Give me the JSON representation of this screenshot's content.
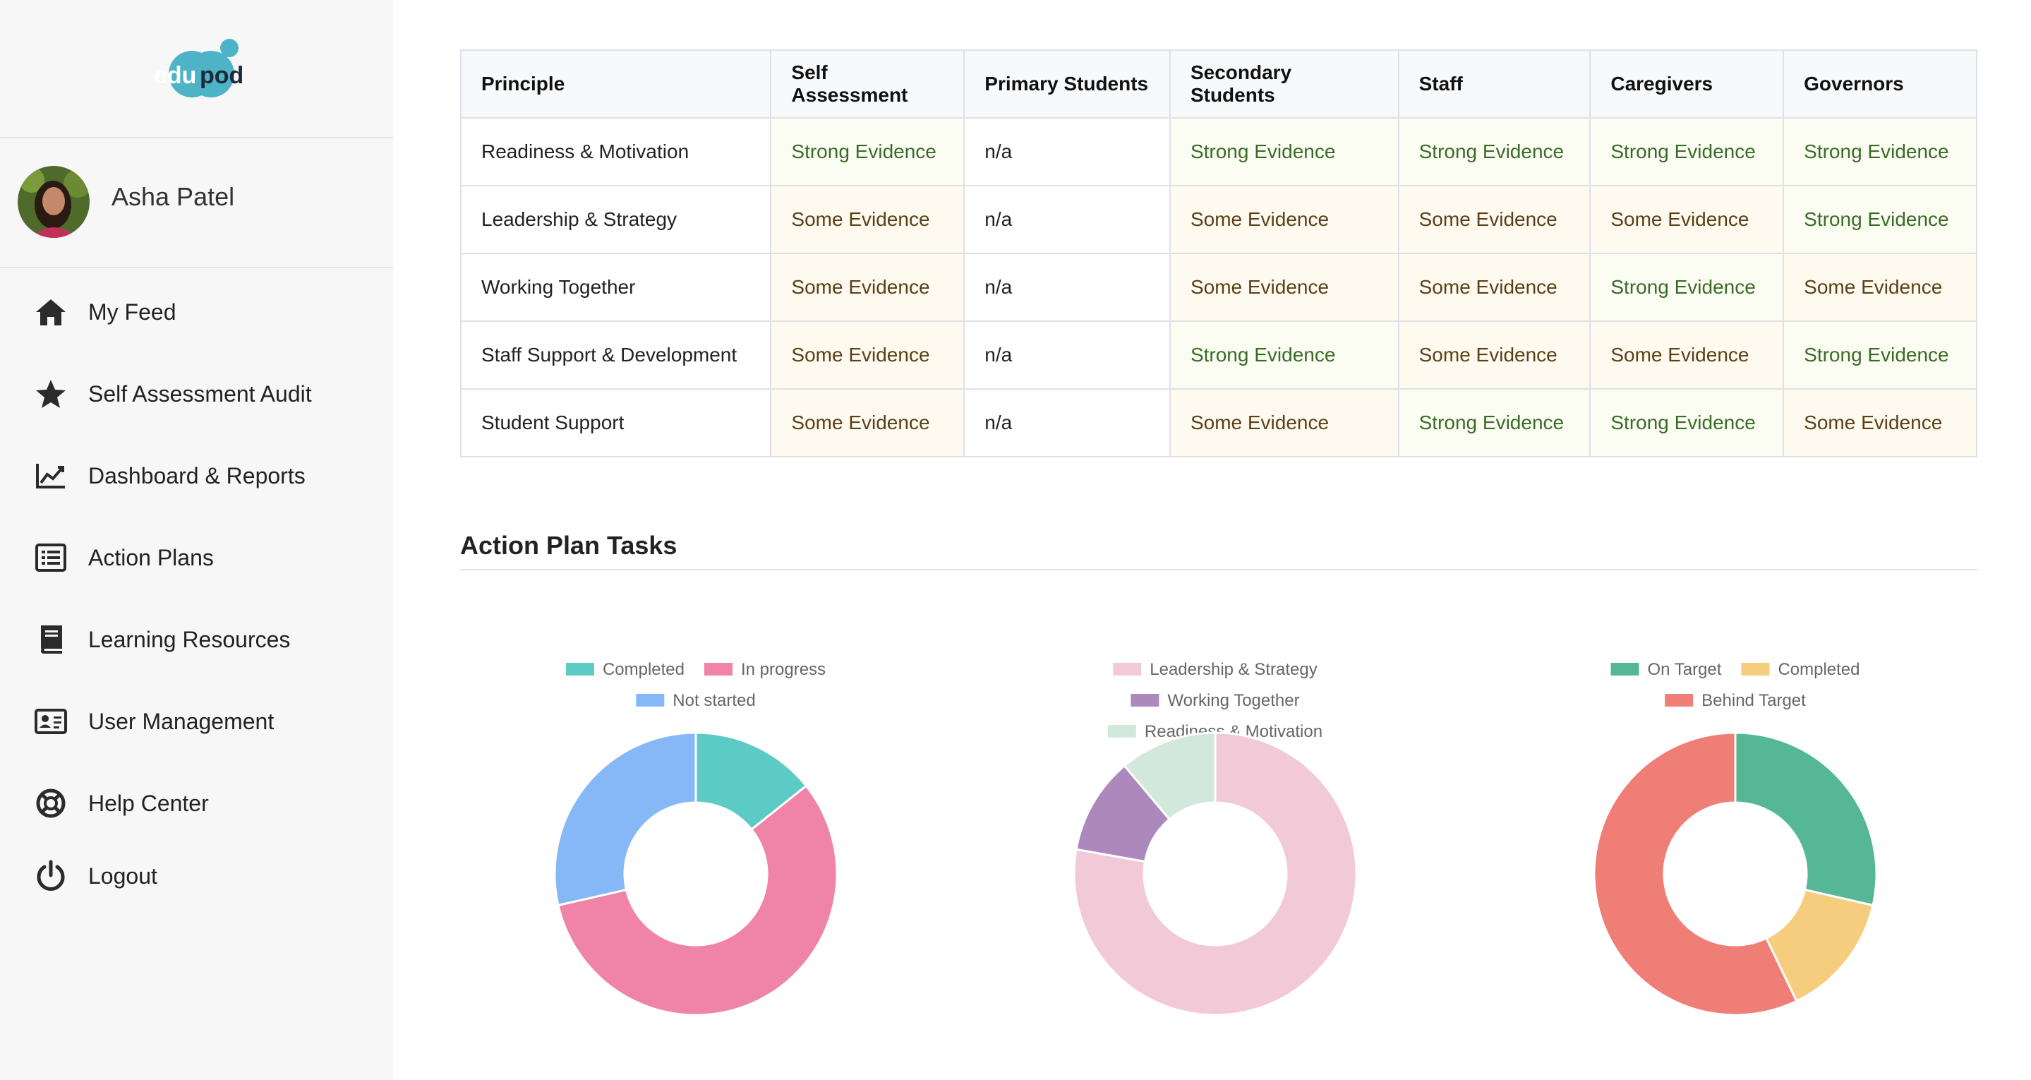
{
  "sidebar": {
    "logo_text": "edupod",
    "user": {
      "name": "Asha Patel"
    },
    "items": [
      {
        "label": "My Feed",
        "icon": "home-icon"
      },
      {
        "label": "Self Assessment Audit",
        "icon": "star-icon"
      },
      {
        "label": "Dashboard & Reports",
        "icon": "line-chart-icon"
      },
      {
        "label": "Action Plans",
        "icon": "list-icon"
      },
      {
        "label": "Learning Resources",
        "icon": "book-icon"
      },
      {
        "label": "User Management",
        "icon": "id-card-icon"
      },
      {
        "label": "Help Center",
        "icon": "lifebuoy-icon"
      },
      {
        "label": "Logout",
        "icon": "power-icon"
      }
    ]
  },
  "table": {
    "headers": [
      "Principle",
      "Self Assessment",
      "Primary Students",
      "Secondary Students",
      "Staff",
      "Caregivers",
      "Governors"
    ],
    "rows": [
      {
        "principle": "Readiness & Motivation",
        "cells": [
          "Strong Evidence",
          "n/a",
          "Strong Evidence",
          "Strong Evidence",
          "Strong Evidence",
          "Strong Evidence"
        ]
      },
      {
        "principle": "Leadership & Strategy",
        "cells": [
          "Some Evidence",
          "n/a",
          "Some Evidence",
          "Some Evidence",
          "Some Evidence",
          "Strong Evidence"
        ]
      },
      {
        "principle": "Working Together",
        "cells": [
          "Some Evidence",
          "n/a",
          "Some Evidence",
          "Some Evidence",
          "Strong Evidence",
          "Some Evidence"
        ]
      },
      {
        "principle": "Staff Support & Development",
        "cells": [
          "Some Evidence",
          "n/a",
          "Strong Evidence",
          "Some Evidence",
          "Some Evidence",
          "Strong Evidence"
        ]
      },
      {
        "principle": "Student Support",
        "cells": [
          "Some Evidence",
          "n/a",
          "Some Evidence",
          "Strong Evidence",
          "Strong Evidence",
          "Some Evidence"
        ]
      }
    ]
  },
  "section": {
    "title": "Action Plan Tasks"
  },
  "colors": {
    "strong_bg": "#fbfdf3",
    "some_bg": "#fefaf0"
  },
  "chart_data": [
    {
      "type": "pie",
      "title": "",
      "labels": [
        "Completed",
        "In progress",
        "Not started"
      ],
      "values": [
        1,
        4,
        2
      ],
      "colors": [
        "#5ccbc6",
        "#f083a8",
        "#86b8f7"
      ]
    },
    {
      "type": "pie",
      "title": "",
      "labels": [
        "Leadership & Strategy",
        "Working Together",
        "Readiness & Motivation"
      ],
      "values": [
        7,
        1,
        1
      ],
      "colors": [
        "#f2cad7",
        "#ac88bd",
        "#d3e8dd"
      ]
    },
    {
      "type": "pie",
      "title": "",
      "labels": [
        "On Target",
        "Completed",
        "Behind Target"
      ],
      "values": [
        2,
        1,
        4
      ],
      "colors": [
        "#55b795",
        "#f6cd7e",
        "#ef7e77"
      ]
    }
  ]
}
